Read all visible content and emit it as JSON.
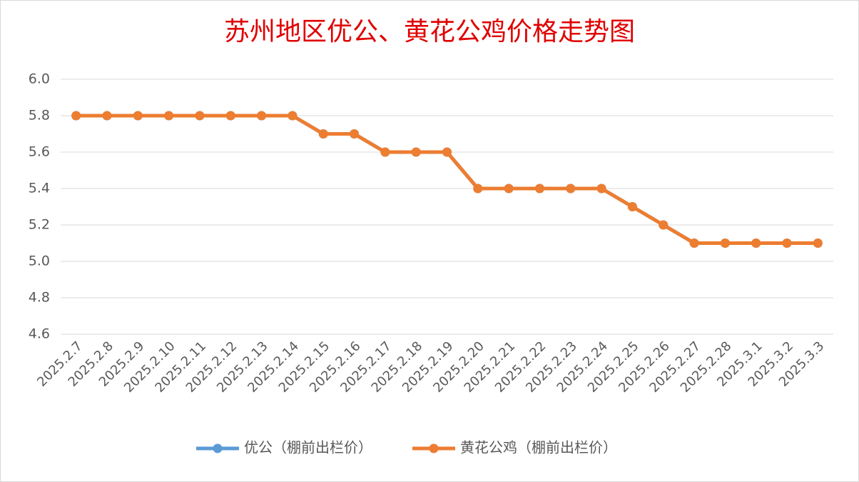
{
  "chart_data": {
    "type": "line",
    "title": "苏州地区优公、黄花公鸡价格走势图",
    "categories": [
      "2025.2.7",
      "2025.2.8",
      "2025.2.9",
      "2025.2.10",
      "2025.2.11",
      "2025.2.12",
      "2025.2.13",
      "2025.2.14",
      "2025.2.15",
      "2025.2.16",
      "2025.2.17",
      "2025.2.18",
      "2025.2.19",
      "2025.2.20",
      "2025.2.21",
      "2025.2.22",
      "2025.2.23",
      "2025.2.24",
      "2025.2.25",
      "2025.2.26",
      "2025.2.27",
      "2025.2.28",
      "2025.3.1",
      "2025.3.2",
      "2025.3.3"
    ],
    "series": [
      {
        "name": "优公（棚前出栏价）",
        "color": "#5b9bd5",
        "values": [
          5.8,
          5.8,
          5.8,
          5.8,
          5.8,
          5.8,
          5.8,
          5.8,
          5.7,
          5.7,
          5.6,
          5.6,
          5.6,
          5.4,
          5.4,
          5.4,
          5.4,
          5.4,
          5.3,
          5.2,
          5.1,
          5.1,
          5.1,
          5.1,
          5.1
        ]
      },
      {
        "name": "黄花公鸡（棚前出栏价）",
        "color": "#ed7d31",
        "values": [
          5.8,
          5.8,
          5.8,
          5.8,
          5.8,
          5.8,
          5.8,
          5.8,
          5.7,
          5.7,
          5.6,
          5.6,
          5.6,
          5.4,
          5.4,
          5.4,
          5.4,
          5.4,
          5.3,
          5.2,
          5.1,
          5.1,
          5.1,
          5.1,
          5.1
        ]
      }
    ],
    "ylim": [
      4.6,
      6.0
    ],
    "yticks": [
      4.6,
      4.8,
      {
        "value": 5.0,
        "label": "5.0"
      },
      5.2,
      5.4,
      5.6,
      5.8,
      {
        "value": 6.0,
        "label": "6.0"
      }
    ],
    "grid": true,
    "legend": "bottom"
  }
}
